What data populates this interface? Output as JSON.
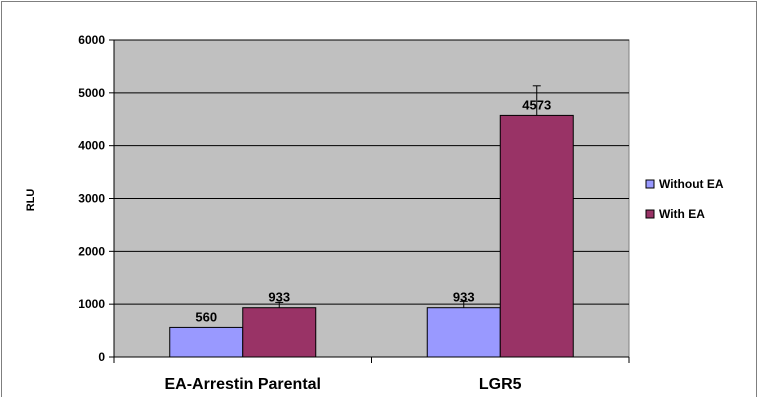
{
  "chart_data": {
    "type": "bar",
    "categories": [
      "EA-Arrestin Parental",
      "LGR5"
    ],
    "series": [
      {
        "name": "Without EA",
        "values": [
          560,
          933
        ],
        "errors": [
          0,
          120
        ],
        "color": "#9999ff"
      },
      {
        "name": "With EA",
        "values": [
          933,
          4573
        ],
        "errors": [
          100,
          560
        ],
        "color": "#993366"
      }
    ],
    "ylabel": "RLU",
    "ylim": [
      0,
      6000
    ],
    "yticks": [
      "0",
      "1000",
      "2000",
      "3000",
      "4000",
      "5000",
      "6000"
    ],
    "data_labels": [
      [
        "560",
        "933"
      ],
      [
        "933",
        "4573"
      ]
    ],
    "grid": true,
    "plot_background": "#c0c0c0",
    "legend_position": "right"
  }
}
